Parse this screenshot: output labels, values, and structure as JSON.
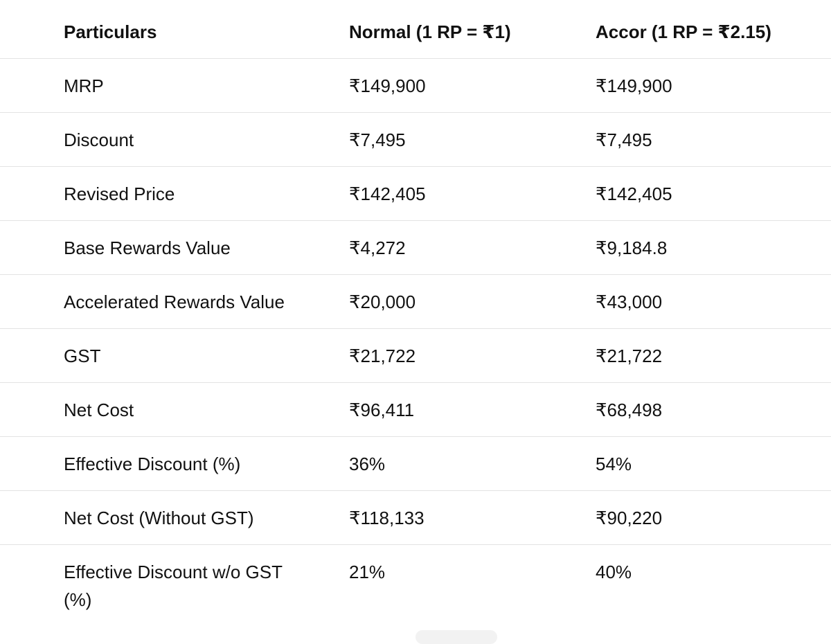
{
  "table": {
    "header": [
      "Particulars",
      "Normal (1 RP = ₹1)",
      "Accor (1 RP = ₹2.15)"
    ],
    "rows": [
      [
        "MRP",
        "₹149,900",
        "₹149,900"
      ],
      [
        "Discount",
        "₹7,495",
        "₹7,495"
      ],
      [
        "Revised Price",
        "₹142,405",
        "₹142,405"
      ],
      [
        "Base Rewards Value",
        "₹4,272",
        "₹9,184.8"
      ],
      [
        "Accelerated Rewards Value",
        "₹20,000",
        "₹43,000"
      ],
      [
        "GST",
        "₹21,722",
        "₹21,722"
      ],
      [
        "Net Cost",
        "₹96,411",
        "₹68,498"
      ],
      [
        "Effective Discount (%)",
        "36%",
        "54%"
      ],
      [
        "Net Cost (Without GST)",
        "₹118,133",
        "₹90,220"
      ],
      [
        "Effective Discount w/o GST (%)",
        "21%",
        "40%"
      ]
    ]
  }
}
